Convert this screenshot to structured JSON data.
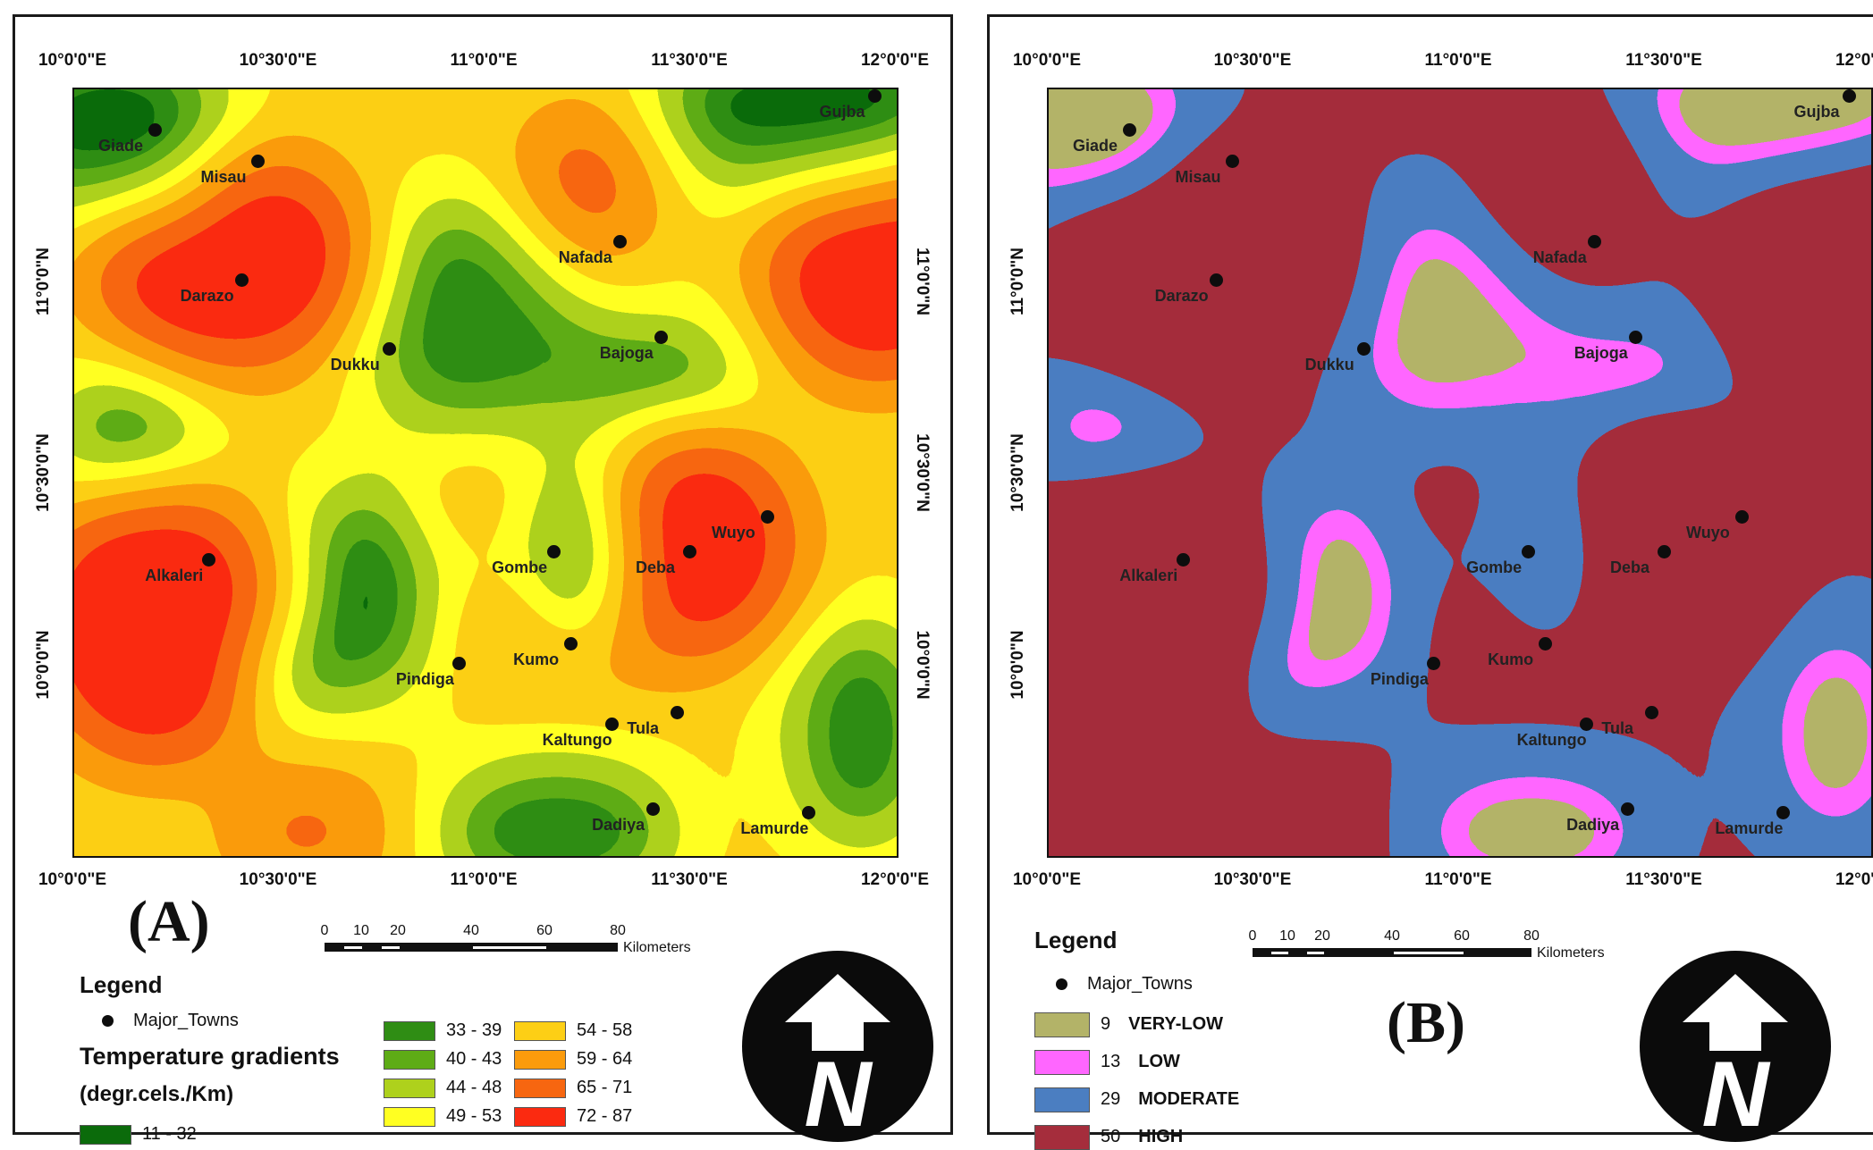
{
  "figure": {
    "lon_ticks": [
      "10°0'0\"E",
      "10°30'0\"E",
      "11°0'0\"E",
      "11°30'0\"E",
      "12°0'0\"E"
    ],
    "lat_ticks": [
      "11°0'0\"N",
      "10°30'0\"N",
      "10°0'0\"N"
    ],
    "towns": [
      {
        "name": "Gujba",
        "lon": 11.95,
        "lat": 11.48
      },
      {
        "name": "Giade",
        "lon": 10.2,
        "lat": 11.39
      },
      {
        "name": "Misau",
        "lon": 10.45,
        "lat": 11.31
      },
      {
        "name": "Nafada",
        "lon": 11.33,
        "lat": 11.1
      },
      {
        "name": "Darazo",
        "lon": 10.41,
        "lat": 11.0
      },
      {
        "name": "Dukku",
        "lon": 10.77,
        "lat": 10.82
      },
      {
        "name": "Bajoga",
        "lon": 11.43,
        "lat": 10.85
      },
      {
        "name": "Wuyo",
        "lon": 11.69,
        "lat": 10.38
      },
      {
        "name": "Alkaleri",
        "lon": 10.33,
        "lat": 10.27
      },
      {
        "name": "Gombe",
        "lon": 11.17,
        "lat": 10.29
      },
      {
        "name": "Deba",
        "lon": 11.5,
        "lat": 10.29
      },
      {
        "name": "Kumo",
        "lon": 11.21,
        "lat": 10.05
      },
      {
        "name": "Pindiga",
        "lon": 10.94,
        "lat": 10.0
      },
      {
        "name": "Tula",
        "lon": 11.47,
        "lat": 9.87
      },
      {
        "name": "Kaltungo",
        "lon": 11.31,
        "lat": 9.84
      },
      {
        "name": "Dadiya",
        "lon": 11.41,
        "lat": 9.62
      },
      {
        "name": "Lamurde",
        "lon": 11.79,
        "lat": 9.61
      }
    ]
  },
  "panel_a": {
    "label": "(A)",
    "legend_title": "Legend",
    "towns_label": "Major_Towns",
    "heading_line1": "Temperature gradients",
    "heading_line2": "(degr.cels./Km)",
    "classes": [
      {
        "label": "11 - 32",
        "color": "#0b6b0b"
      },
      {
        "label": "33 - 39",
        "color": "#2f8d14"
      },
      {
        "label": "40 - 43",
        "color": "#5eac16"
      },
      {
        "label": "44 - 48",
        "color": "#aed11c"
      },
      {
        "label": "49 - 53",
        "color": "#ffff22"
      },
      {
        "label": "54 - 58",
        "color": "#fdcf15"
      },
      {
        "label": "59 - 64",
        "color": "#fb9b0c"
      },
      {
        "label": "65 - 71",
        "color": "#f76610"
      },
      {
        "label": "72 - 87",
        "color": "#fb2a10"
      }
    ]
  },
  "panel_b": {
    "label": "(B)",
    "legend_title": "Legend",
    "towns_label": "Major_Towns",
    "classes": [
      {
        "value": "9",
        "name": "VERY-LOW",
        "color": "#b3b368"
      },
      {
        "value": "13",
        "name": "LOW",
        "color": "#ff66ff"
      },
      {
        "value": "29",
        "name": "MODERATE",
        "color": "#4b7ec1"
      },
      {
        "value": "50",
        "name": "HIGH",
        "color": "#a52d3c"
      }
    ]
  },
  "scalebar": {
    "ticks": [
      "0",
      "10",
      "20",
      "40",
      "60",
      "80"
    ],
    "unit": "Kilometers"
  },
  "north_arrow": {
    "letter": "N",
    "icon": "north-arrow-icon"
  }
}
